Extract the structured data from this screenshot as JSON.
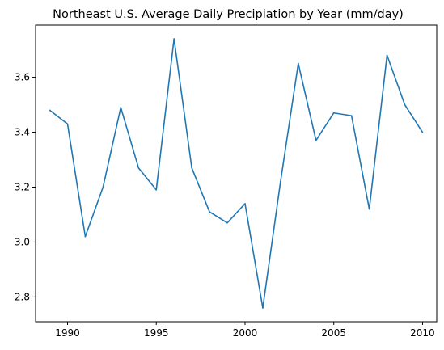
{
  "chart_data": {
    "type": "line",
    "title": "Northeast U.S. Average Daily Precipiation by Year (mm/day)",
    "xlabel": "",
    "ylabel": "",
    "xlim": [
      1988.2,
      2010.8
    ],
    "ylim": [
      2.71,
      3.79
    ],
    "xticks": [
      1990,
      1995,
      2000,
      2005,
      2010
    ],
    "yticks": [
      2.8,
      3.0,
      3.2,
      3.4,
      3.6
    ],
    "ytick_labels": [
      "2.8",
      "3.0",
      "3.2",
      "3.4",
      "3.6"
    ],
    "grid": false,
    "legend": "none",
    "series": [
      {
        "color": "#1f77b4",
        "x": [
          1989,
          1990,
          1991,
          1992,
          1993,
          1994,
          1995,
          1996,
          1997,
          1998,
          1999,
          2000,
          2001,
          2002,
          2003,
          2004,
          2005,
          2006,
          2007,
          2008,
          2009,
          2010
        ],
        "values": [
          3.48,
          3.43,
          3.02,
          3.2,
          3.49,
          3.27,
          3.19,
          3.74,
          3.27,
          3.11,
          3.07,
          3.14,
          2.76,
          3.22,
          3.65,
          3.37,
          3.47,
          3.46,
          3.12,
          3.68,
          3.5,
          3.4
        ]
      }
    ]
  }
}
